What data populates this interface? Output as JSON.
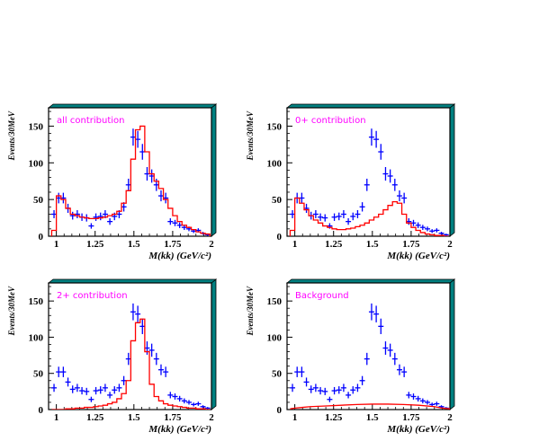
{
  "style": {
    "data_color": "#0000ff",
    "fit_color": "#ff0000",
    "title_color": "#ff00ff",
    "frame_shadow_color": "#008080"
  },
  "chart_data": [
    {
      "type": "histogram-with-points",
      "title": "all contribution",
      "xlabel": "M(kk) (GeV/c²)",
      "ylabel": "Events/30MeV",
      "xlim": [
        0.95,
        2.0
      ],
      "ylim": [
        0,
        175
      ],
      "x_ticks": [
        "1",
        "1.25",
        "1.5",
        "1.75",
        "2"
      ],
      "y_ticks": [
        "0",
        "50",
        "100",
        "150"
      ],
      "series": [
        {
          "kind": "data-points",
          "x": [
            0.985,
            1.015,
            1.045,
            1.075,
            1.105,
            1.135,
            1.165,
            1.195,
            1.225,
            1.255,
            1.285,
            1.315,
            1.345,
            1.375,
            1.405,
            1.435,
            1.465,
            1.495,
            1.525,
            1.555,
            1.585,
            1.615,
            1.645,
            1.675,
            1.705,
            1.735,
            1.765,
            1.795,
            1.825,
            1.855,
            1.885,
            1.915,
            1.945,
            1.975
          ],
          "y": [
            30,
            52,
            52,
            38,
            28,
            30,
            26,
            25,
            14,
            26,
            27,
            30,
            20,
            27,
            30,
            40,
            70,
            135,
            132,
            115,
            85,
            82,
            70,
            55,
            52,
            20,
            18,
            15,
            12,
            10,
            7,
            8,
            4,
            2
          ]
        },
        {
          "kind": "fit-histogram",
          "x": [
            0.985,
            1.015,
            1.045,
            1.075,
            1.105,
            1.135,
            1.165,
            1.195,
            1.225,
            1.255,
            1.285,
            1.315,
            1.345,
            1.375,
            1.405,
            1.435,
            1.465,
            1.495,
            1.525,
            1.555,
            1.585,
            1.615,
            1.645,
            1.675,
            1.705,
            1.735,
            1.765,
            1.795,
            1.825,
            1.855,
            1.885,
            1.915,
            1.945,
            1.975
          ],
          "y": [
            8,
            55,
            50,
            38,
            30,
            28,
            26,
            25,
            24,
            24,
            25,
            26,
            28,
            30,
            34,
            45,
            62,
            105,
            145,
            150,
            115,
            85,
            75,
            65,
            50,
            38,
            28,
            20,
            15,
            12,
            9,
            6,
            4,
            3
          ]
        }
      ]
    },
    {
      "type": "histogram-with-points",
      "title": "0+ contribution",
      "xlabel": "M(kk) (GeV/c²)",
      "ylabel": "Events/30MeV",
      "xlim": [
        0.95,
        2.0
      ],
      "ylim": [
        0,
        175
      ],
      "x_ticks": [
        "1",
        "1.25",
        "1.5",
        "1.75",
        "2"
      ],
      "y_ticks": [
        "0",
        "50",
        "100",
        "150"
      ],
      "series": [
        {
          "kind": "data-points",
          "x": [
            0.985,
            1.015,
            1.045,
            1.075,
            1.105,
            1.135,
            1.165,
            1.195,
            1.225,
            1.255,
            1.285,
            1.315,
            1.345,
            1.375,
            1.405,
            1.435,
            1.465,
            1.495,
            1.525,
            1.555,
            1.585,
            1.615,
            1.645,
            1.675,
            1.705,
            1.735,
            1.765,
            1.795,
            1.825,
            1.855,
            1.885,
            1.915,
            1.945,
            1.975
          ],
          "y": [
            30,
            52,
            52,
            38,
            28,
            30,
            26,
            25,
            14,
            26,
            27,
            30,
            20,
            27,
            30,
            40,
            70,
            135,
            132,
            115,
            85,
            82,
            70,
            55,
            52,
            20,
            18,
            15,
            12,
            10,
            7,
            8,
            4,
            2
          ]
        },
        {
          "kind": "fit-histogram",
          "x": [
            0.985,
            1.015,
            1.045,
            1.075,
            1.105,
            1.135,
            1.165,
            1.195,
            1.225,
            1.255,
            1.285,
            1.315,
            1.345,
            1.375,
            1.405,
            1.435,
            1.465,
            1.495,
            1.525,
            1.555,
            1.585,
            1.615,
            1.645,
            1.675,
            1.705,
            1.735,
            1.765,
            1.795,
            1.825,
            1.855,
            1.885,
            1.915,
            1.945,
            1.975
          ],
          "y": [
            8,
            52,
            45,
            36,
            28,
            22,
            18,
            14,
            12,
            10,
            9,
            9,
            10,
            11,
            13,
            15,
            18,
            22,
            26,
            30,
            36,
            42,
            47,
            45,
            30,
            18,
            12,
            8,
            5,
            3,
            2,
            1,
            1,
            0
          ]
        }
      ]
    },
    {
      "type": "histogram-with-points",
      "title": "2+ contribution",
      "xlabel": "M(kk) (GeV/c²)",
      "ylabel": "Events/30MeV",
      "xlim": [
        0.95,
        2.0
      ],
      "ylim": [
        0,
        175
      ],
      "x_ticks": [
        "1",
        "1.25",
        "1.5",
        "1.75",
        "2"
      ],
      "y_ticks": [
        "0",
        "50",
        "100",
        "150"
      ],
      "series": [
        {
          "kind": "data-points",
          "x": [
            0.985,
            1.015,
            1.045,
            1.075,
            1.105,
            1.135,
            1.165,
            1.195,
            1.225,
            1.255,
            1.285,
            1.315,
            1.345,
            1.375,
            1.405,
            1.435,
            1.465,
            1.495,
            1.525,
            1.555,
            1.585,
            1.615,
            1.645,
            1.675,
            1.705,
            1.735,
            1.765,
            1.795,
            1.825,
            1.855,
            1.885,
            1.915,
            1.945,
            1.975
          ],
          "y": [
            30,
            52,
            52,
            38,
            28,
            30,
            26,
            25,
            14,
            26,
            27,
            30,
            20,
            27,
            30,
            40,
            70,
            135,
            132,
            115,
            85,
            82,
            70,
            55,
            52,
            20,
            18,
            15,
            12,
            10,
            7,
            8,
            4,
            2
          ]
        },
        {
          "kind": "fit-histogram",
          "x": [
            0.985,
            1.015,
            1.045,
            1.075,
            1.105,
            1.135,
            1.165,
            1.195,
            1.225,
            1.255,
            1.285,
            1.315,
            1.345,
            1.375,
            1.405,
            1.435,
            1.465,
            1.495,
            1.525,
            1.555,
            1.585,
            1.615,
            1.645,
            1.675,
            1.705,
            1.735,
            1.765,
            1.795,
            1.825,
            1.855,
            1.885,
            1.915,
            1.945,
            1.975
          ],
          "y": [
            0,
            0,
            0,
            1,
            1,
            2,
            2,
            3,
            3,
            4,
            5,
            6,
            8,
            10,
            15,
            22,
            40,
            95,
            120,
            125,
            80,
            35,
            18,
            12,
            8,
            6,
            5,
            4,
            3,
            2,
            2,
            1,
            1,
            0
          ]
        }
      ]
    },
    {
      "type": "histogram-with-points",
      "title": "Background",
      "xlabel": "M(kk) (GeV/c²)",
      "ylabel": "Events/30MeV",
      "xlim": [
        0.95,
        2.0
      ],
      "ylim": [
        0,
        175
      ],
      "x_ticks": [
        "1",
        "1.25",
        "1.5",
        "1.75",
        "2"
      ],
      "y_ticks": [
        "0",
        "50",
        "100",
        "150"
      ],
      "series": [
        {
          "kind": "data-points",
          "x": [
            0.985,
            1.015,
            1.045,
            1.075,
            1.105,
            1.135,
            1.165,
            1.195,
            1.225,
            1.255,
            1.285,
            1.315,
            1.345,
            1.375,
            1.405,
            1.435,
            1.465,
            1.495,
            1.525,
            1.555,
            1.585,
            1.615,
            1.645,
            1.675,
            1.705,
            1.735,
            1.765,
            1.795,
            1.825,
            1.855,
            1.885,
            1.915,
            1.945,
            1.975
          ],
          "y": [
            30,
            52,
            52,
            38,
            28,
            30,
            26,
            25,
            14,
            26,
            27,
            30,
            20,
            27,
            30,
            40,
            70,
            135,
            132,
            115,
            85,
            82,
            70,
            55,
            52,
            20,
            18,
            15,
            12,
            10,
            7,
            8,
            4,
            2
          ]
        },
        {
          "kind": "fit-curve",
          "x": [
            0.97,
            1.0,
            1.05,
            1.1,
            1.2,
            1.3,
            1.4,
            1.5,
            1.6,
            1.7,
            1.8,
            1.9,
            1.95,
            2.0
          ],
          "y": [
            1,
            2,
            3,
            4,
            5,
            6,
            7,
            7.5,
            7.5,
            7,
            6,
            4,
            2,
            1
          ]
        }
      ]
    }
  ]
}
